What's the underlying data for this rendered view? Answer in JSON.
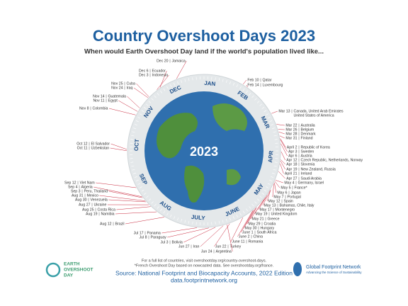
{
  "header": {
    "title": "Country Overshoot Days 2023",
    "subtitle": "When would Earth Overshoot Day land if the world's population lived like..."
  },
  "center_label": "2023",
  "months": [
    "JAN",
    "FEB",
    "MAR",
    "APR",
    "MAY",
    "JUNE",
    "JULY",
    "AUG",
    "SEP",
    "OCT",
    "NOV",
    "DEC"
  ],
  "entries_right": [
    {
      "date": "Feb 10",
      "country": [
        "Qatar"
      ]
    },
    {
      "date": "Feb 14",
      "country": [
        "Luxembourg"
      ]
    },
    {
      "date": "Mar 13",
      "country": [
        "Canada, United Arab Emirates",
        "United States of America"
      ]
    },
    {
      "date": "Mar 22",
      "country": [
        "Australia"
      ]
    },
    {
      "date": "Mar 26",
      "country": [
        "Belgium"
      ]
    },
    {
      "date": "Mar 28",
      "country": [
        "Denmark"
      ]
    },
    {
      "date": "Mar 31",
      "country": [
        "Finland"
      ]
    },
    {
      "date": "April 2",
      "country": [
        "Republic of Korea"
      ]
    },
    {
      "date": "Apr 3",
      "country": [
        "Sweden"
      ]
    },
    {
      "date": "Apr 6",
      "country": [
        "Austria"
      ]
    },
    {
      "date": "Apr 12",
      "country": [
        "Czech Republic, Netherlands, Norway"
      ]
    },
    {
      "date": "Apr 18",
      "country": [
        "Slovenia"
      ]
    },
    {
      "date": "Apr 19",
      "country": [
        "New Zealand, Russia"
      ]
    },
    {
      "date": "April 21",
      "country": [
        "Ireland"
      ]
    },
    {
      "date": "Apr 27",
      "country": [
        "Saudi Arabia"
      ]
    },
    {
      "date": "May 4",
      "country": [
        "Germany, Israel"
      ]
    },
    {
      "date": "May 5",
      "country": [
        "France*"
      ]
    },
    {
      "date": "May 6",
      "country": [
        "Japan"
      ]
    },
    {
      "date": "May 7",
      "country": [
        "Portugal"
      ]
    },
    {
      "date": "May 12",
      "country": [
        "Spain"
      ]
    },
    {
      "date": "May 13",
      "country": [
        "Bahamas, Chile, Italy"
      ]
    },
    {
      "date": "May 17",
      "country": [
        "Montenegro"
      ]
    },
    {
      "date": "May 19",
      "country": [
        "United Kingdom"
      ]
    },
    {
      "date": "May 21",
      "country": [
        "Greece"
      ]
    },
    {
      "date": "May 29",
      "country": [
        "Croatia"
      ]
    },
    {
      "date": "May 30",
      "country": [
        "Hungary"
      ]
    },
    {
      "date": "June 1",
      "country": [
        "South Africa"
      ]
    },
    {
      "date": "June 2",
      "country": [
        "China"
      ]
    },
    {
      "date": "June 11",
      "country": [
        "Romania"
      ]
    },
    {
      "date": "Jun 22",
      "country": [
        "Turkey"
      ]
    }
  ],
  "entries_left": [
    {
      "date": "Dec 20",
      "country": [
        "Jamaica"
      ]
    },
    {
      "date": "Dec 6",
      "country": [
        "Ecuador"
      ]
    },
    {
      "date": "Dec 3",
      "country": [
        "Indonesia"
      ]
    },
    {
      "date": "Nov 25",
      "country": [
        "Cuba"
      ]
    },
    {
      "date": "Nov 24",
      "country": [
        "Iraq"
      ]
    },
    {
      "date": "Nov 14",
      "country": [
        "Guatemala"
      ]
    },
    {
      "date": "Nov 11",
      "country": [
        "Egypt"
      ]
    },
    {
      "date": "Nov 8",
      "country": [
        "Colombia"
      ]
    },
    {
      "date": "Oct 12",
      "country": [
        "El Salvador"
      ]
    },
    {
      "date": "Oct 11",
      "country": [
        "Uzbekistan"
      ]
    },
    {
      "date": "Sep 12",
      "country": [
        "Viet Nam"
      ]
    },
    {
      "date": "Sep 4",
      "country": [
        "Algeria"
      ]
    },
    {
      "date": "Sep 3",
      "country": [
        "Peru, Thailand"
      ]
    },
    {
      "date": "Aug 31",
      "country": [
        "Mexico"
      ]
    },
    {
      "date": "Aug 30",
      "country": [
        "Venezuela"
      ]
    },
    {
      "date": "Aug 27",
      "country": [
        "Ukraine"
      ]
    },
    {
      "date": "Aug 25",
      "country": [
        "Costa Rica"
      ]
    },
    {
      "date": "Aug 19",
      "country": [
        "Namibia"
      ]
    },
    {
      "date": "Aug 12",
      "country": [
        "Brazil"
      ]
    },
    {
      "date": "Jul 17",
      "country": [
        "Panama"
      ]
    },
    {
      "date": "Jul 8",
      "country": [
        "Paraguay"
      ]
    },
    {
      "date": "Jul 3",
      "country": [
        "Bolivia"
      ]
    },
    {
      "date": "Jun 27",
      "country": [
        "Iran"
      ]
    },
    {
      "date": "Jun 24",
      "country": [
        "Argentina"
      ]
    }
  ],
  "footer": {
    "notes": [
      "For a full list of countries, visit overshootday.org/country-overshoot-days.",
      "*French Overshoot Day based on nowcasted data. See overshootday.org/france."
    ],
    "source": "Source: National Footprint and Biocapacity Accounts, 2022 Edition",
    "source_url": "data.footprintnetwork.org",
    "logo_left": [
      "EARTH",
      "OVERSHOOT",
      "DAY"
    ],
    "logo_right": {
      "name": "Global Footprint Network",
      "tagline": "Advancing the Science of Sustainability"
    }
  }
}
